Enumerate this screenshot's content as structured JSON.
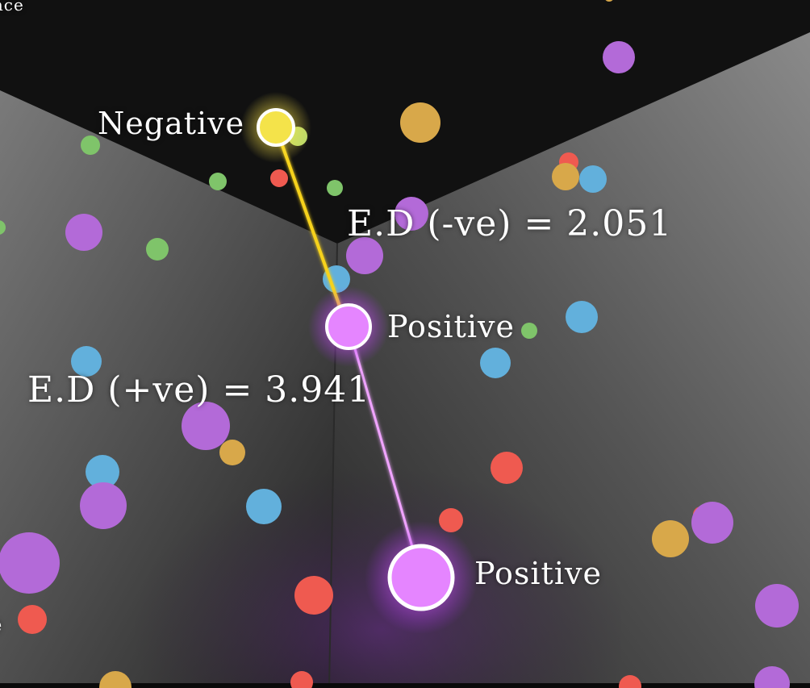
{
  "labels": {
    "top_partial": "ance",
    "negative": "Negative",
    "positive_1": "Positive",
    "positive_2": "Positive",
    "ed_negative": "E.D (-ve) = 2.051",
    "ed_positive": "E.D (+ve) = 3.941",
    "left_partial": "e"
  },
  "colors": {
    "negative": "#ffe84a",
    "positive": "#e070ff",
    "neg_link": "#f6d21c",
    "pos_link": "#f0a4ff",
    "background": "#111111",
    "floor_light": "#6e6e6e",
    "floor_dark": "#242424",
    "particle_palette": [
      "#b36ad8",
      "#d8a84a",
      "#7fc46a",
      "#62b0dc",
      "#ef5a50"
    ]
  }
}
